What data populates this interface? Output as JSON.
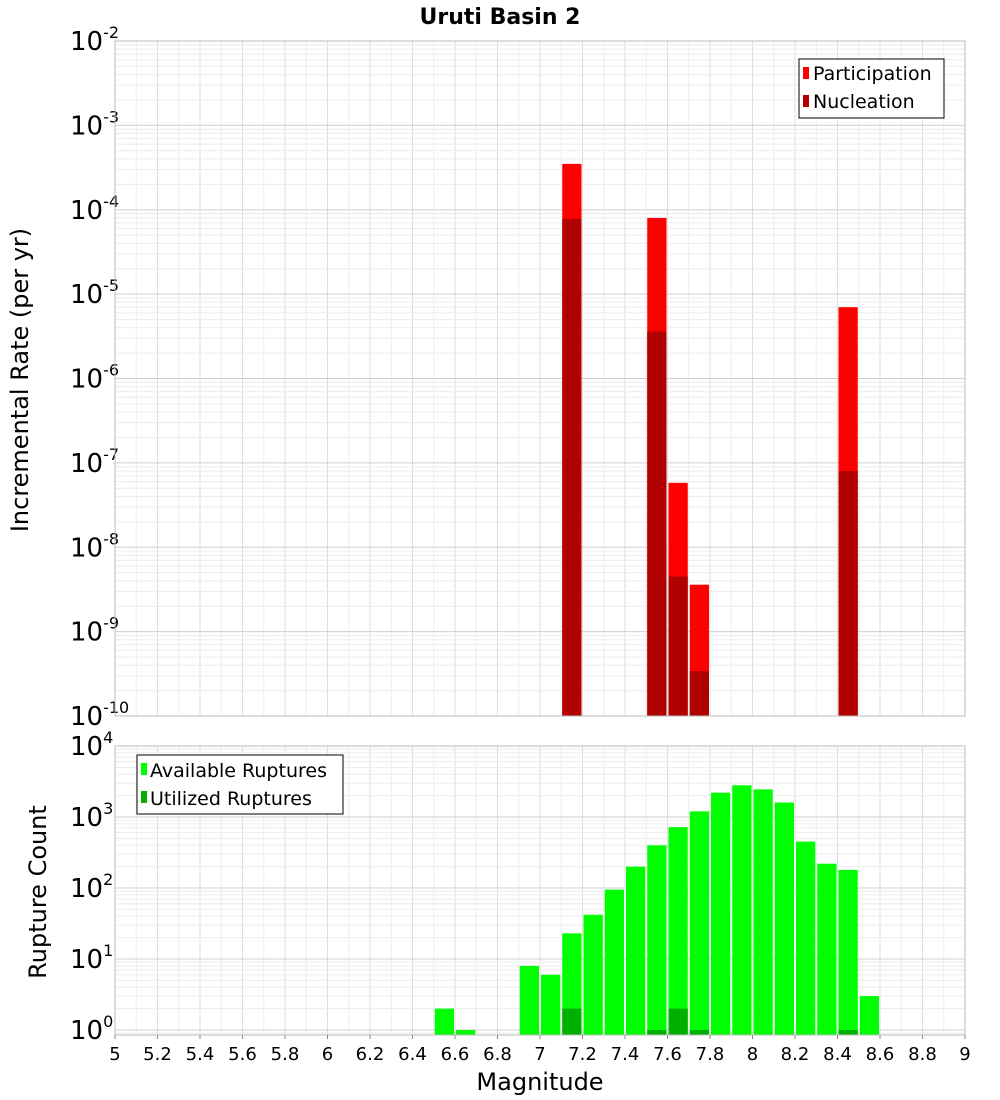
{
  "chart_data": [
    {
      "type": "bar",
      "title": "Uruti Basin 2",
      "xlabel": "Magnitude",
      "ylabel": "Incremental Rate (per yr)",
      "yscale": "log",
      "ylim": [
        1e-10,
        0.01
      ],
      "xlim": [
        5,
        9
      ],
      "legend_position": "top-right",
      "y_tick_exponents": [
        "-10",
        "-9",
        "-8",
        "-7",
        "-6",
        "-5",
        "-4",
        "-3",
        "-2"
      ],
      "series": [
        {
          "name": "Participation",
          "color": "#ff0000",
          "points": [
            {
              "x": 7.15,
              "y": 0.00035
            },
            {
              "x": 7.55,
              "y": 8e-05
            },
            {
              "x": 7.65,
              "y": 5.8e-08
            },
            {
              "x": 7.75,
              "y": 3.6e-09
            },
            {
              "x": 8.45,
              "y": 7e-06
            }
          ]
        },
        {
          "name": "Nucleation",
          "color": "#b00000",
          "points": [
            {
              "x": 7.15,
              "y": 7.8e-05
            },
            {
              "x": 7.55,
              "y": 3.6e-06
            },
            {
              "x": 7.65,
              "y": 4.5e-09
            },
            {
              "x": 7.75,
              "y": 3.4e-10
            },
            {
              "x": 8.45,
              "y": 8e-08
            }
          ]
        }
      ]
    },
    {
      "type": "bar",
      "title": "",
      "xlabel": "Magnitude",
      "ylabel": "Rupture Count",
      "yscale": "log",
      "ylim": [
        0.85,
        10000
      ],
      "xlim": [
        5,
        9
      ],
      "legend_position": "top-left",
      "y_tick_exponents": [
        "0",
        "1",
        "2",
        "3",
        "4"
      ],
      "x_tick_labels": [
        "5",
        "5.2",
        "5.4",
        "5.6",
        "5.8",
        "6",
        "6.2",
        "6.4",
        "6.6",
        "6.8",
        "7",
        "7.2",
        "7.4",
        "7.6",
        "7.8",
        "8",
        "8.2",
        "8.4",
        "8.6",
        "8.8",
        "9"
      ],
      "series": [
        {
          "name": "Available Ruptures",
          "color": "#00ff00",
          "points": [
            {
              "x": 6.55,
              "y": 2
            },
            {
              "x": 6.65,
              "y": 1
            },
            {
              "x": 6.95,
              "y": 8
            },
            {
              "x": 7.05,
              "y": 6
            },
            {
              "x": 7.15,
              "y": 23
            },
            {
              "x": 7.25,
              "y": 42
            },
            {
              "x": 7.35,
              "y": 95
            },
            {
              "x": 7.45,
              "y": 200
            },
            {
              "x": 7.55,
              "y": 400
            },
            {
              "x": 7.65,
              "y": 720
            },
            {
              "x": 7.75,
              "y": 1200
            },
            {
              "x": 7.85,
              "y": 2200
            },
            {
              "x": 7.95,
              "y": 2800
            },
            {
              "x": 8.05,
              "y": 2450
            },
            {
              "x": 8.15,
              "y": 1600
            },
            {
              "x": 8.25,
              "y": 450
            },
            {
              "x": 8.35,
              "y": 220
            },
            {
              "x": 8.45,
              "y": 180
            },
            {
              "x": 8.55,
              "y": 3
            }
          ]
        },
        {
          "name": "Utilized Ruptures",
          "color": "#00b000",
          "points": [
            {
              "x": 7.15,
              "y": 2
            },
            {
              "x": 7.55,
              "y": 1
            },
            {
              "x": 7.65,
              "y": 2
            },
            {
              "x": 7.75,
              "y": 1
            },
            {
              "x": 8.45,
              "y": 1
            }
          ]
        }
      ]
    }
  ]
}
